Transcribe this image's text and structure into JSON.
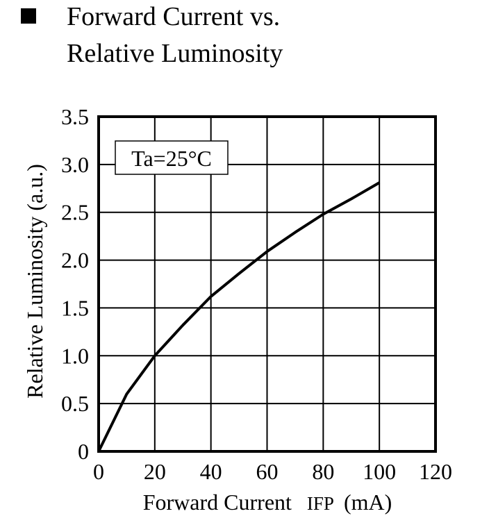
{
  "chart_data": {
    "type": "line",
    "title": "Forward Current vs. Relative Luminosity",
    "title_lines": [
      "Forward Current vs.",
      "Relative Luminosity"
    ],
    "xlabel": "Forward Current",
    "xlabel_symbol": "IFP",
    "xlabel_unit": "(mA)",
    "ylabel": "Relative Luminosity (a.u.)",
    "xlim": [
      0,
      120
    ],
    "ylim": [
      0,
      3.5
    ],
    "x_ticks": [
      "0",
      "20",
      "40",
      "60",
      "80",
      "100",
      "120"
    ],
    "y_ticks": [
      "0",
      "0.5",
      "1.0",
      "1.5",
      "2.0",
      "2.5",
      "3.0",
      "3.5"
    ],
    "grid": true,
    "annotation": "Ta=25°C",
    "x": [
      0,
      2,
      10,
      20,
      30,
      40,
      50,
      60,
      70,
      80,
      90,
      100
    ],
    "series": [
      {
        "values": [
          0,
          0.12,
          0.6,
          1.0,
          1.32,
          1.62,
          1.86,
          2.09,
          2.29,
          2.48,
          2.64,
          2.81
        ]
      }
    ],
    "line_color": "#000000"
  }
}
